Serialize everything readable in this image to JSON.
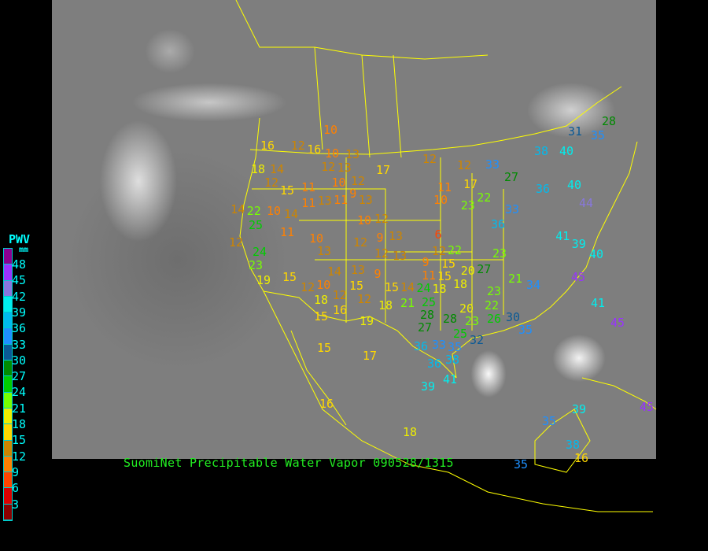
{
  "title": "SuomiNet Precipitable Water Vapor 090528/1315",
  "legend": {
    "title": "PWV",
    "unit": "mm",
    "labels": [
      "48",
      "45",
      "42",
      "39",
      "36",
      "33",
      "30",
      "27",
      "24",
      "21",
      "18",
      "15",
      "12",
      "9",
      "6",
      "3"
    ],
    "colors": [
      "#8b0091",
      "#9933ff",
      "#8877dd",
      "#00eeee",
      "#00bbee",
      "#1e90ff",
      "#0a5a96",
      "#008b00",
      "#00cc00",
      "#77ff00",
      "#eeee00",
      "#ffd700",
      "#cd8500",
      "#ff8000",
      "#ff4500",
      "#dd0000",
      "#8b0000"
    ]
  },
  "colors": {
    "title": "#22ee22",
    "legend_text": "#00ffff",
    "borders": "#ffff00",
    "background": "#000000"
  },
  "stations": [
    10,
    16,
    12,
    16,
    10,
    13,
    18,
    14,
    12,
    15,
    11,
    12,
    13,
    17,
    10,
    12,
    9,
    11,
    13,
    14,
    22,
    10,
    14,
    11,
    13,
    25,
    11,
    10,
    13,
    12,
    9,
    13,
    10,
    12,
    12,
    24,
    23,
    19,
    15,
    12,
    10,
    14,
    15,
    13,
    9,
    12,
    13,
    12,
    12,
    11,
    10,
    17,
    22,
    23,
    6,
    9,
    12,
    22,
    15,
    11,
    15,
    14,
    24,
    18,
    15,
    18,
    20,
    27,
    23,
    23,
    21,
    34,
    18,
    12,
    12,
    18,
    21,
    15,
    16,
    19,
    15,
    17,
    16,
    18,
    25,
    28,
    27,
    28,
    23,
    25,
    20,
    22,
    26,
    30,
    35,
    32,
    36,
    33,
    35,
    36,
    38,
    39,
    41,
    36,
    33,
    38,
    40,
    31,
    28,
    35,
    33,
    27,
    36,
    40,
    44,
    41,
    40,
    39,
    45,
    41,
    45,
    45,
    35,
    39,
    35,
    38,
    16
  ]
}
